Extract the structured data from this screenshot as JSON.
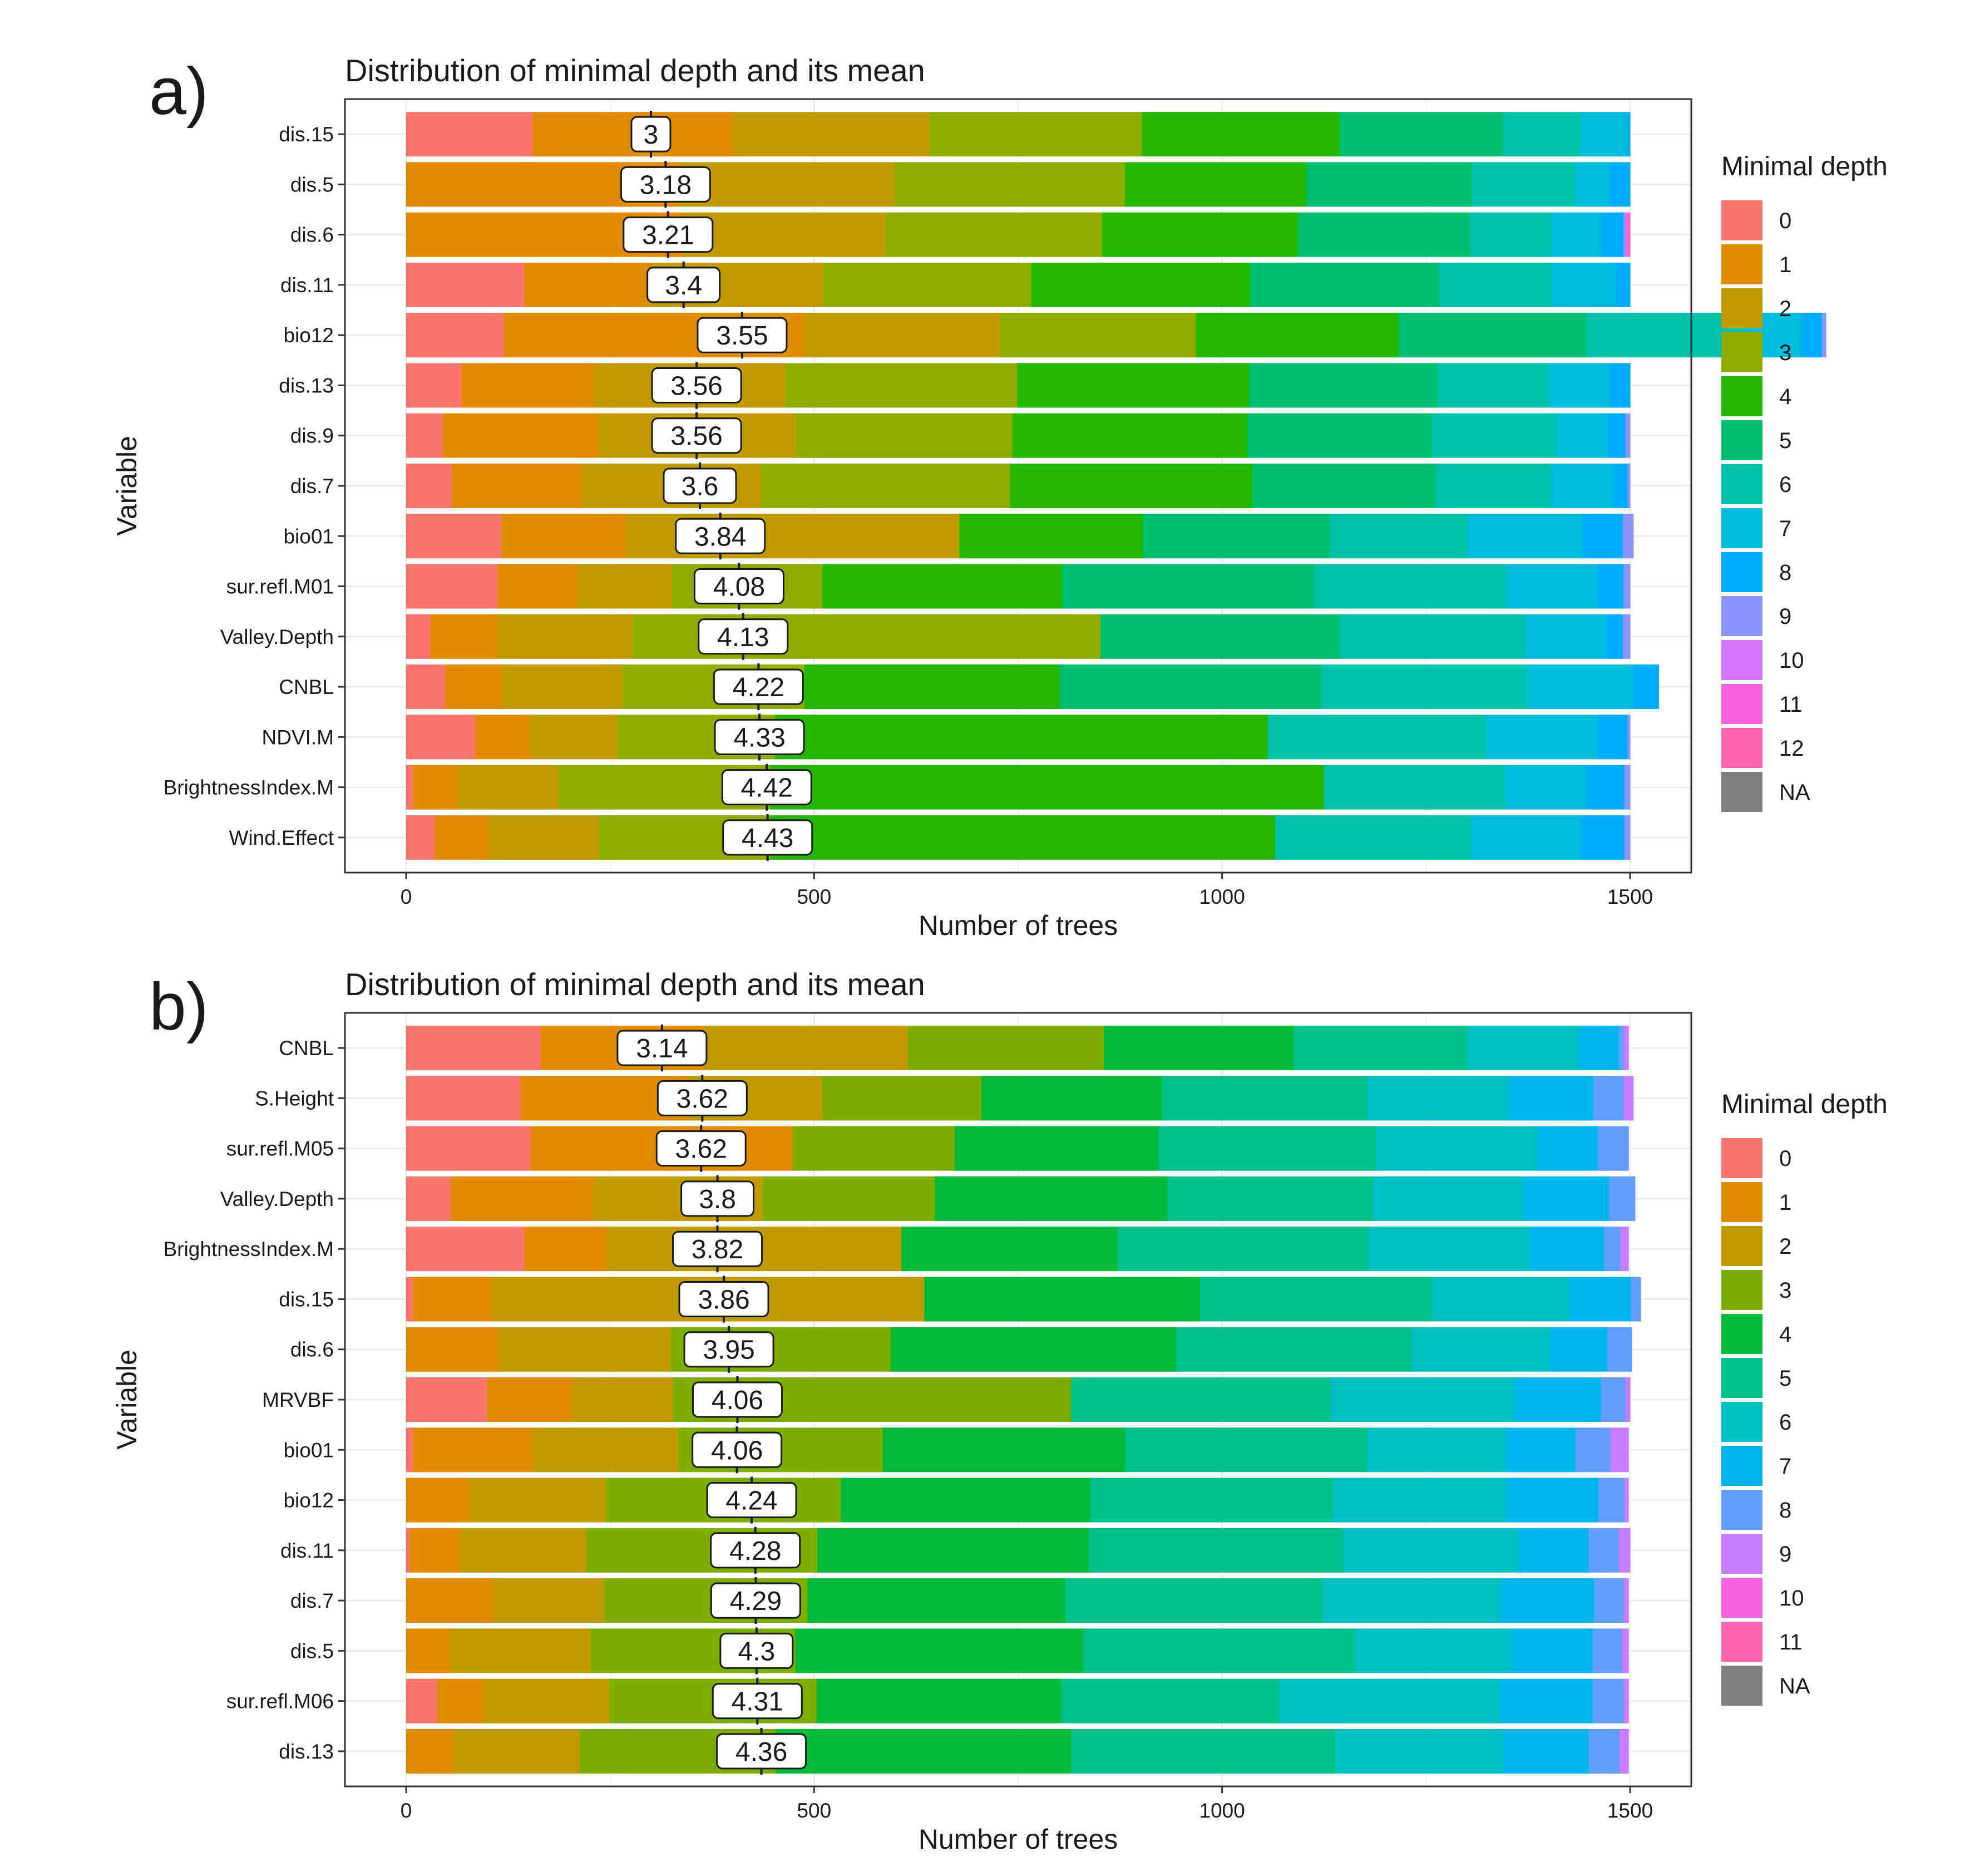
{
  "figure": {
    "legend_title": "Minimal depth",
    "depth_colors": {
      "0": "#F8766D",
      "1": "#E08B00",
      "2": "#C09B00",
      "3": "#7CAE00",
      "4": "#00BA38",
      "5": "#00C08B",
      "6": "#00BFC4",
      "7": "#00B4F0",
      "8": "#619CFF",
      "9": "#C77CFF",
      "10": "#F564E3",
      "11": "#FF64B0",
      "12": "#FF6C91",
      "NA": "#7F7F7F"
    },
    "a_colors": {
      "0": "#F8766D",
      "1": "#E08B00",
      "2": "#C09B00",
      "3": "#8EAB00",
      "4": "#24B700",
      "5": "#00BE70",
      "6": "#00C1AB",
      "7": "#00BBDA",
      "8": "#00ACFC",
      "9": "#8B93FF",
      "10": "#D575FE",
      "11": "#F962DD",
      "12": "#FF65AC",
      "NA": "#7F7F7F"
    }
  },
  "chart_data": [
    {
      "type": "bar",
      "orientation": "horizontal-stacked",
      "panel_label": "a)",
      "title": "Distribution of minimal depth and its mean",
      "xlabel": "Number of trees",
      "ylabel": "Variable",
      "xlim": [
        -75,
        1575
      ],
      "xticks": [
        0,
        500,
        1000,
        1500
      ],
      "legend_title": "Minimal depth",
      "legend_labels": [
        "0",
        "1",
        "2",
        "3",
        "4",
        "5",
        "6",
        "7",
        "8",
        "9",
        "10",
        "11",
        "12",
        "NA"
      ],
      "variables": [
        {
          "name": "dis.15",
          "mean": "3",
          "counts": [
            155,
            245,
            242,
            260,
            242,
            200,
            96,
            57,
            3,
            0,
            0,
            0,
            0,
            0
          ]
        },
        {
          "name": "dis.5",
          "mean": "3.18",
          "counts": [
            0,
            334,
            265,
            282,
            222,
            203,
            127,
            42,
            25,
            0,
            0,
            0,
            0,
            0
          ]
        },
        {
          "name": "dis.6",
          "mean": "3.21",
          "counts": [
            0,
            339,
            248,
            266,
            240,
            211,
            100,
            61,
            27,
            2,
            2,
            2,
            2,
            0
          ]
        },
        {
          "name": "dis.11",
          "mean": "3.4",
          "counts": [
            145,
            155,
            211,
            255,
            268,
            232,
            138,
            78,
            18,
            0,
            0,
            0,
            0,
            0
          ]
        },
        {
          "name": "bio12",
          "mean": "3.55",
          "counts": [
            120,
            368,
            240,
            240,
            248,
            230,
            198,
            66,
            25,
            5,
            0,
            0,
            0,
            0
          ]
        },
        {
          "name": "dis.13",
          "mean": "3.56",
          "counts": [
            68,
            162,
            235,
            284,
            284,
            231,
            137,
            74,
            25,
            0,
            0,
            0,
            0,
            0
          ]
        },
        {
          "name": "dis.9",
          "mean": "3.56",
          "counts": [
            45,
            190,
            243,
            265,
            288,
            226,
            153,
            63,
            21,
            6,
            0,
            0,
            0,
            0
          ]
        },
        {
          "name": "dis.7",
          "mean": "3.6",
          "counts": [
            56,
            158,
            221,
            305,
            297,
            225,
            141,
            77,
            17,
            3,
            0,
            0,
            0,
            0
          ]
        },
        {
          "name": "bio01",
          "mean": "3.84",
          "counts": [
            117,
            152,
            409,
            0,
            225,
            229,
            169,
            140,
            50,
            13,
            0,
            0,
            0,
            0
          ]
        },
        {
          "name": "sur.refl.M01",
          "mean": "4.08",
          "counts": [
            112,
            98,
            116,
            184,
            294,
            309,
            235,
            112,
            32,
            8,
            0,
            0,
            0,
            0
          ]
        },
        {
          "name": "Valley.Depth",
          "mean": "4.13",
          "counts": [
            30,
            82,
            166,
            573,
            0,
            293,
            227,
            100,
            20,
            9,
            0,
            0,
            0,
            0
          ]
        },
        {
          "name": "CNBL",
          "mean": "4.22",
          "counts": [
            48,
            70,
            147,
            223,
            313,
            320,
            253,
            131,
            30,
            0,
            0,
            0,
            0,
            0
          ]
        },
        {
          "name": "NDVI.M",
          "mean": "4.33",
          "counts": [
            85,
            66,
            108,
            193,
            604,
            0,
            268,
            136,
            37,
            3,
            0,
            0,
            0,
            0
          ]
        },
        {
          "name": "BrightnessIndex.M",
          "mean": "4.42",
          "counts": [
            8,
            55,
            124,
            259,
            679,
            0,
            222,
            100,
            46,
            7,
            0,
            0,
            0,
            0
          ]
        },
        {
          "name": "Wind.Effect",
          "mean": "4.43",
          "counts": [
            35,
            66,
            135,
            210,
            619,
            0,
            240,
            135,
            53,
            7,
            0,
            0,
            0,
            0
          ]
        }
      ]
    },
    {
      "type": "bar",
      "orientation": "horizontal-stacked",
      "panel_label": "b)",
      "title": "Distribution of minimal depth and its mean",
      "xlabel": "Number of trees",
      "ylabel": "Variable",
      "xlim": [
        -75,
        1575
      ],
      "xticks": [
        0,
        500,
        1000,
        1500
      ],
      "legend_title": "Minimal depth",
      "legend_labels": [
        "0",
        "1",
        "2",
        "3",
        "4",
        "5",
        "6",
        "7",
        "8",
        "9",
        "10",
        "11",
        "NA"
      ],
      "variables": [
        {
          "name": "CNBL",
          "mean": "3.14",
          "counts": [
            165,
            200,
            250,
            240,
            233,
            213,
            137,
            48,
            6,
            6,
            0,
            0,
            0
          ]
        },
        {
          "name": "S.Height",
          "mean": "3.62",
          "counts": [
            140,
            205,
            165,
            195,
            221,
            252,
            174,
            103,
            37,
            12,
            0,
            0,
            0
          ]
        },
        {
          "name": "sur.refl.M05",
          "mean": "3.62",
          "counts": [
            152,
            322,
            0,
            198,
            250,
            267,
            197,
            74,
            38,
            0,
            0,
            0,
            0
          ]
        },
        {
          "name": "Valley.Depth",
          "mean": "3.8",
          "counts": [
            55,
            174,
            208,
            211,
            285,
            252,
            184,
            105,
            32,
            0,
            0,
            0,
            0
          ]
        },
        {
          "name": "BrightnessIndex.M",
          "mean": "3.82",
          "counts": [
            145,
            101,
            361,
            0,
            265,
            308,
            198,
            90,
            20,
            10,
            0,
            0,
            0
          ]
        },
        {
          "name": "dis.15",
          "mean": "3.86",
          "counts": [
            8,
            97,
            530,
            0,
            338,
            285,
            168,
            75,
            12,
            0,
            0,
            0,
            0
          ]
        },
        {
          "name": "dis.6",
          "mean": "3.95",
          "counts": [
            0,
            113,
            211,
            270,
            350,
            288,
            170,
            70,
            30,
            0,
            0,
            0,
            0
          ]
        },
        {
          "name": "MRVBF",
          "mean": "4.06",
          "counts": [
            99,
            104,
            124,
            488,
            0,
            318,
            226,
            105,
            30,
            6,
            0,
            0,
            0
          ]
        },
        {
          "name": "bio01",
          "mean": "4.06",
          "counts": [
            8,
            146,
            180,
            250,
            297,
            297,
            170,
            85,
            43,
            22,
            0,
            0,
            0
          ]
        },
        {
          "name": "bio12",
          "mean": "4.24",
          "counts": [
            0,
            77,
            168,
            288,
            306,
            297,
            213,
            112,
            32,
            5,
            0,
            0,
            0
          ]
        },
        {
          "name": "dis.11",
          "mean": "4.28",
          "counts": [
            5,
            61,
            155,
            283,
            333,
            312,
            215,
            85,
            37,
            14,
            0,
            0,
            0
          ]
        },
        {
          "name": "dis.7",
          "mean": "4.29",
          "counts": [
            0,
            106,
            137,
            249,
            316,
            315,
            219,
            114,
            36,
            6,
            0,
            0,
            0
          ]
        },
        {
          "name": "dis.5",
          "mean": "4.3",
          "counts": [
            0,
            54,
            172,
            251,
            353,
            333,
            193,
            98,
            36,
            8,
            0,
            0,
            0
          ]
        },
        {
          "name": "sur.refl.M06",
          "mean": "4.31",
          "counts": [
            38,
            58,
            153,
            254,
            300,
            267,
            271,
            113,
            38,
            6,
            0,
            0,
            0
          ]
        },
        {
          "name": "dis.13",
          "mean": "4.36",
          "counts": [
            0,
            58,
            155,
            240,
            362,
            324,
            206,
            104,
            38,
            11,
            0,
            0,
            0
          ]
        }
      ]
    }
  ]
}
